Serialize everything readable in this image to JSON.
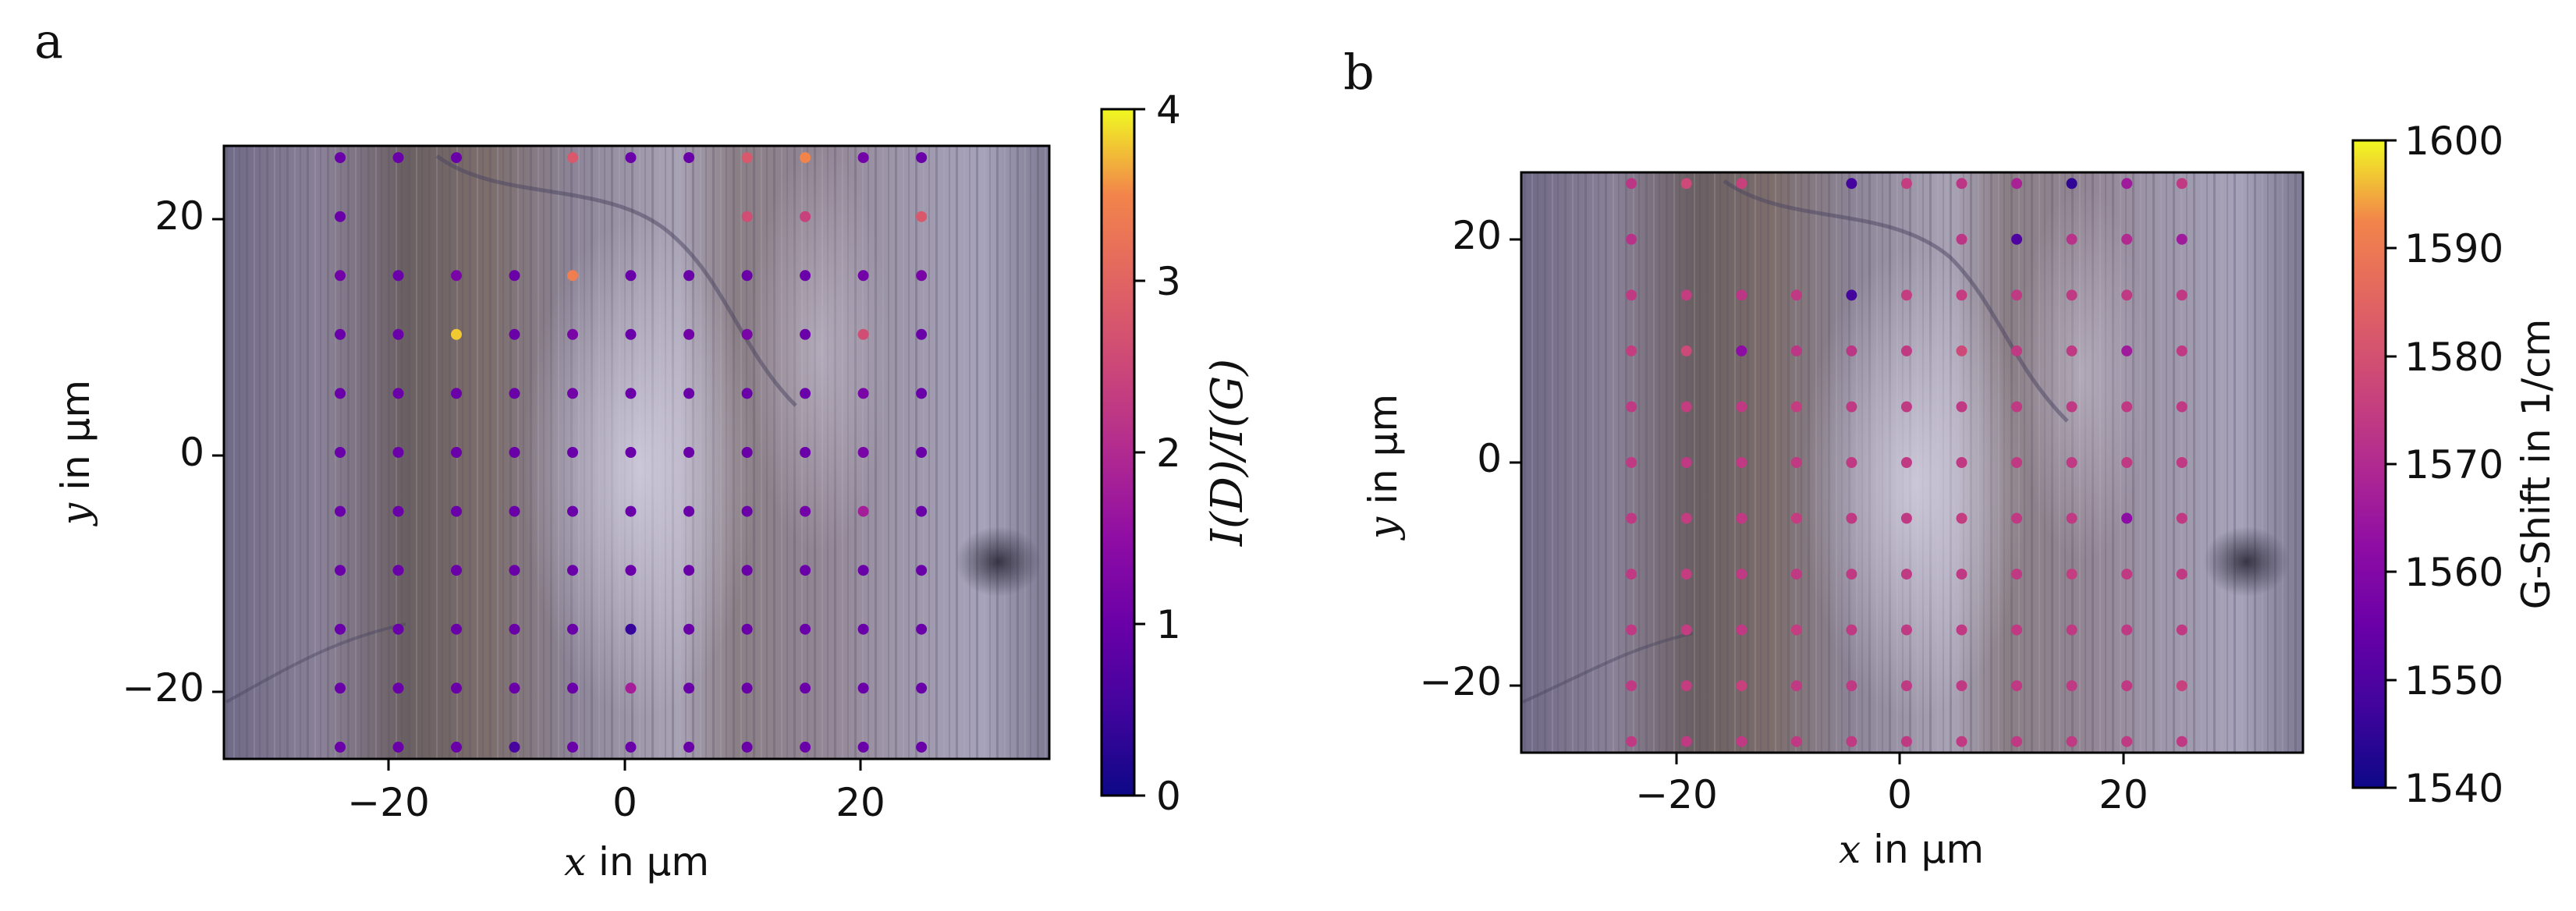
{
  "chart_data": [
    {
      "panel": "a",
      "type": "scatter",
      "background": "optical-microscope-image",
      "xlabel_var": "x",
      "xlabel_rest": " in µm",
      "ylabel_var": "y",
      "ylabel_rest": " in µm",
      "xlim": [
        -35,
        36
      ],
      "ylim": [
        -26,
        26
      ],
      "xticks": [
        -20,
        0,
        20
      ],
      "yticks": [
        -20,
        0,
        20
      ],
      "xtick_labels": [
        "−20",
        "0",
        "20"
      ],
      "ytick_labels": [
        "−20",
        "0",
        "20"
      ],
      "colorbar": {
        "label": "I(D)/I(G)",
        "range": [
          0,
          4
        ],
        "ticks": [
          0,
          1,
          2,
          3,
          4
        ],
        "tick_labels": [
          "0",
          "1",
          "2",
          "3",
          "4"
        ],
        "colormap": "plasma"
      },
      "grid_x": [
        -25,
        -20,
        -15,
        -10,
        -5,
        0,
        5,
        10,
        15,
        20,
        25
      ],
      "grid_y": [
        25,
        20,
        15,
        10,
        5,
        0,
        -5,
        -10,
        -15,
        -20,
        -25
      ],
      "values": [
        [
          1.0,
          1.0,
          1.0,
          null,
          2.8,
          1.0,
          1.0,
          2.8,
          3.5,
          1.1,
          1.0
        ],
        [
          1.0,
          null,
          null,
          null,
          null,
          null,
          null,
          2.6,
          2.4,
          null,
          2.8
        ],
        [
          1.1,
          1.0,
          1.2,
          1.0,
          3.4,
          1.0,
          1.0,
          1.0,
          1.0,
          1.1,
          1.2
        ],
        [
          1.0,
          1.0,
          3.8,
          1.0,
          1.2,
          1.0,
          1.1,
          1.2,
          1.0,
          2.6,
          1.0
        ],
        [
          1.0,
          1.0,
          1.0,
          1.0,
          1.1,
          1.0,
          1.0,
          1.0,
          1.0,
          1.2,
          1.0
        ],
        [
          1.0,
          1.0,
          1.0,
          1.0,
          1.0,
          1.0,
          1.0,
          1.0,
          1.0,
          1.2,
          1.0
        ],
        [
          1.0,
          1.0,
          1.0,
          1.0,
          1.0,
          1.0,
          1.0,
          1.0,
          1.1,
          1.8,
          1.0
        ],
        [
          1.0,
          1.0,
          1.0,
          1.0,
          1.0,
          1.0,
          1.0,
          1.0,
          1.0,
          1.0,
          1.0
        ],
        [
          1.0,
          1.0,
          1.0,
          1.0,
          1.0,
          0.4,
          1.0,
          1.0,
          1.0,
          1.0,
          1.0
        ],
        [
          1.0,
          1.0,
          1.0,
          1.0,
          1.0,
          1.8,
          1.0,
          1.0,
          1.0,
          1.0,
          1.0
        ],
        [
          1.0,
          1.0,
          1.0,
          0.6,
          1.0,
          1.0,
          1.0,
          1.0,
          1.0,
          1.0,
          1.0
        ]
      ]
    },
    {
      "panel": "b",
      "type": "scatter",
      "background": "optical-microscope-image",
      "xlabel_var": "x",
      "xlabel_rest": " in µm",
      "ylabel_var": "y",
      "ylabel_rest": " in µm",
      "xlim": [
        -35,
        36
      ],
      "ylim": [
        -26,
        26
      ],
      "xticks": [
        -20,
        0,
        20
      ],
      "yticks": [
        -20,
        0,
        20
      ],
      "xtick_labels": [
        "−20",
        "0",
        "20"
      ],
      "ytick_labels": [
        "−20",
        "0",
        "20"
      ],
      "colorbar": {
        "label": "G-Shift in 1/cm",
        "range": [
          1540,
          1600
        ],
        "ticks": [
          1540,
          1550,
          1560,
          1570,
          1580,
          1590,
          1600
        ],
        "tick_labels": [
          "1540",
          "1550",
          "1560",
          "1570",
          "1580",
          "1590",
          "1600"
        ],
        "colormap": "plasma"
      },
      "grid_x": [
        -25,
        -20,
        -15,
        -10,
        -5,
        0,
        5,
        10,
        15,
        20,
        25
      ],
      "grid_y": [
        25,
        20,
        15,
        10,
        5,
        0,
        -5,
        -10,
        -15,
        -20,
        -25
      ],
      "values": [
        [
          1573,
          1578,
          1576,
          null,
          1548,
          1575,
          1573,
          1568,
          1545,
          1566,
          1574
        ],
        [
          1572,
          null,
          null,
          null,
          null,
          null,
          1573,
          1550,
          1572,
          1570,
          1566
        ],
        [
          1574,
          1575,
          1573,
          1574,
          1548,
          1575,
          1575,
          1574,
          1574,
          1574,
          1574
        ],
        [
          1575,
          1578,
          1562,
          1573,
          1573,
          1574,
          1578,
          1574,
          1574,
          1566,
          1574
        ],
        [
          1574,
          1575,
          1574,
          1575,
          1574,
          1574,
          1574,
          1574,
          1574,
          1574,
          1574
        ],
        [
          1574,
          1574,
          1574,
          1574,
          1574,
          1574,
          1574,
          1574,
          1574,
          1574,
          1574
        ],
        [
          1574,
          1575,
          1574,
          1575,
          1574,
          1574,
          1575,
          1574,
          1574,
          1562,
          1574
        ],
        [
          1574,
          1575,
          1574,
          1574,
          1574,
          1574,
          1574,
          1574,
          1575,
          1574,
          1574
        ],
        [
          1574,
          1575,
          1574,
          1575,
          1574,
          1574,
          1574,
          1574,
          1574,
          1574,
          1574
        ],
        [
          1574,
          1575,
          1576,
          1574,
          1574,
          1574,
          1574,
          1574,
          1574,
          1574,
          1576
        ],
        [
          1574,
          1574,
          1574,
          1574,
          1574,
          1574,
          1574,
          1574,
          1574,
          1574,
          1574
        ]
      ]
    }
  ]
}
